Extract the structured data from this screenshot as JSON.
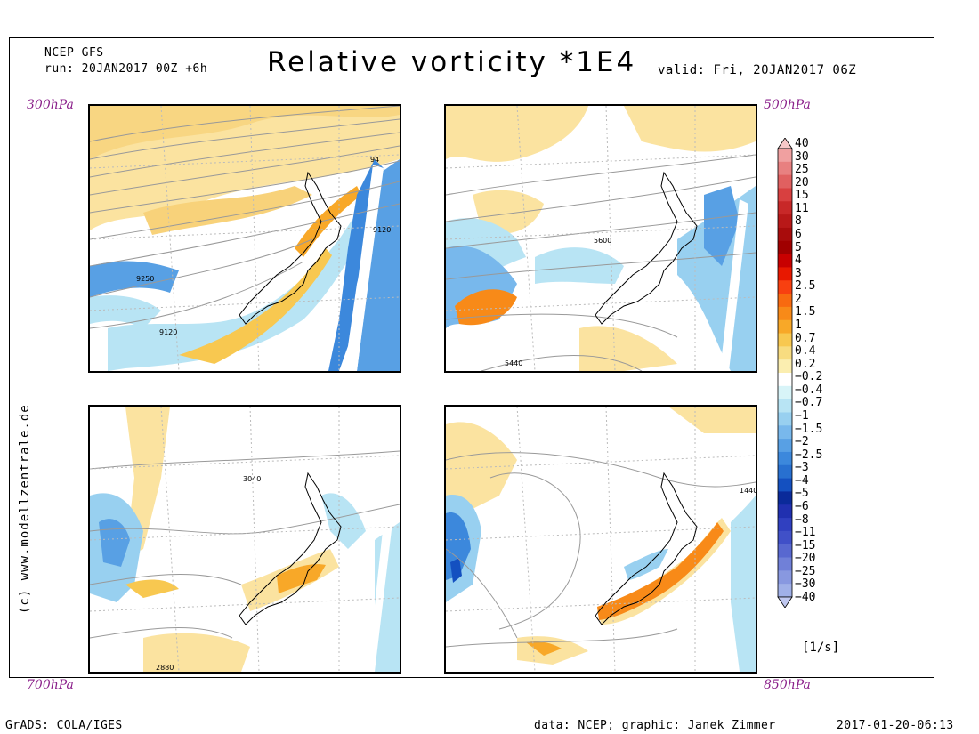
{
  "header": {
    "model": "NCEP GFS",
    "run": "run: 20JAN2017 00Z +6h",
    "title": "Relative vorticity *1E4",
    "valid": "valid: Fri, 20JAN2017 06Z"
  },
  "panels": [
    {
      "level_label": "300hPa",
      "contour_labels": [
        "9120",
        "9250",
        "9120",
        "94"
      ]
    },
    {
      "level_label": "500hPa",
      "contour_labels": [
        "5600",
        "5440"
      ]
    },
    {
      "level_label": "700hPa",
      "contour_labels": [
        "3040",
        "2880"
      ]
    },
    {
      "level_label": "850hPa",
      "contour_labels": [
        "1440"
      ]
    }
  ],
  "colorbar": {
    "labels": [
      "40",
      "30",
      "25",
      "20",
      "15",
      "11",
      "8",
      "6",
      "5",
      "4",
      "3",
      "2.5",
      "2",
      "1.5",
      "1",
      "0.7",
      "0.4",
      "0.2",
      "−0.2",
      "−0.4",
      "−0.7",
      "−1",
      "−1.5",
      "−2",
      "−2.5",
      "−3",
      "−4",
      "−5",
      "−6",
      "−8",
      "−11",
      "−15",
      "−20",
      "−25",
      "−30",
      "−40"
    ],
    "colors": [
      "#f7c8c8",
      "#f0a0a0",
      "#e88080",
      "#e06060",
      "#d84040",
      "#c82828",
      "#b81818",
      "#a80c0c",
      "#a00000",
      "#c80000",
      "#e81800",
      "#f84010",
      "#f86a10",
      "#f88a18",
      "#f8a828",
      "#f8c850",
      "#f8dc80",
      "#fbeeb0",
      "#ffffff",
      "#d8f4f8",
      "#b8e4f4",
      "#98d0f0",
      "#78b8ec",
      "#58a0e4",
      "#3c88dc",
      "#2870d0",
      "#1450c0",
      "#0a2a9a",
      "#2030b0",
      "#3040c0",
      "#4050c8",
      "#5868d0",
      "#7080d8",
      "#8898e0",
      "#a0b0e8",
      "#c0c8f0"
    ],
    "unit": "[1/s]"
  },
  "credit": "(c) www.modellzentrale.de",
  "footer": {
    "left": "GrADS: COLA/IGES",
    "center": "data: NCEP; graphic: Janek Zimmer",
    "right": "2017-01-20-06:13"
  }
}
